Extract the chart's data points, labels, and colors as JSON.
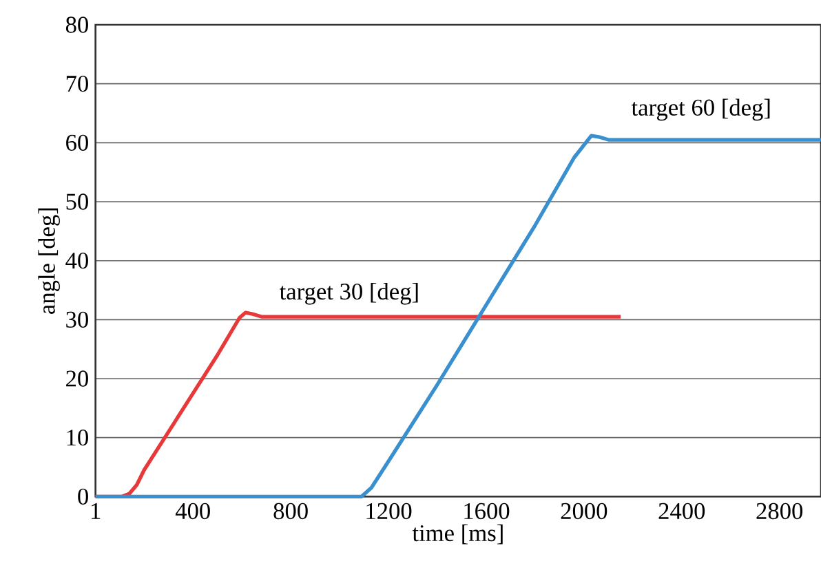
{
  "chart_data": {
    "type": "line",
    "xlabel": "time [ms]",
    "ylabel": "angle [deg]",
    "xlim": [
      1,
      2970
    ],
    "xticks": [
      1,
      400,
      800,
      1200,
      1600,
      2000,
      2400,
      2800
    ],
    "ylim": [
      0,
      80
    ],
    "yticks": [
      0,
      10,
      20,
      30,
      40,
      50,
      60,
      70,
      80
    ],
    "grid": "y",
    "marker": "none",
    "line_style": "solid",
    "series": [
      {
        "color": "#e8393a",
        "x": [
          1,
          110,
          140,
          170,
          200,
          300,
          400,
          500,
          590,
          615,
          640,
          680,
          2150
        ],
        "values": [
          0,
          0,
          0.5,
          2,
          4.5,
          11,
          17.5,
          24,
          30.3,
          31.2,
          31,
          30.5,
          30.5
        ]
      },
      {
        "color": "#3a8fcf",
        "x": [
          1,
          1090,
          1130,
          1200,
          1400,
          1600,
          1800,
          1960,
          2030,
          2060,
          2100,
          2970
        ],
        "values": [
          0,
          0,
          1.5,
          6,
          19,
          32.5,
          46,
          57.5,
          61.2,
          61,
          60.5,
          60.5
        ]
      }
    ],
    "annotations": [
      "target 30 [deg]",
      "target 60 [deg]"
    ]
  }
}
